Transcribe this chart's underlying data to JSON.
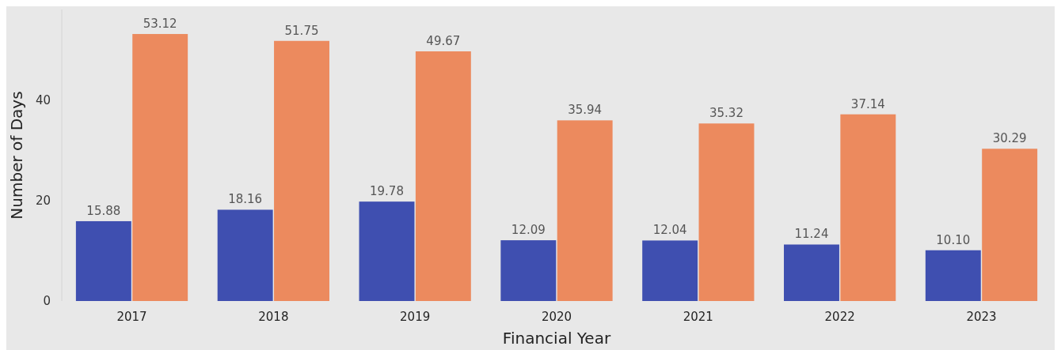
{
  "chart_data": {
    "type": "bar",
    "xlabel": "Financial Year",
    "ylabel": "Number of Days",
    "categories": [
      "2017",
      "2018",
      "2019",
      "2020",
      "2021",
      "2022",
      "2023"
    ],
    "series": [
      {
        "color": "#3f4fb0",
        "values": [
          15.88,
          18.16,
          19.78,
          12.09,
          12.04,
          11.24,
          10.1
        ],
        "value_labels": [
          "15.88",
          "18.16",
          "19.78",
          "12.09",
          "12.04",
          "11.24",
          "10.10"
        ]
      },
      {
        "color": "#ec8a5e",
        "values": [
          53.12,
          51.75,
          49.67,
          35.94,
          35.32,
          37.14,
          30.29
        ],
        "value_labels": [
          "53.12",
          "51.75",
          "49.67",
          "35.94",
          "35.32",
          "37.14",
          "30.29"
        ]
      }
    ],
    "ylim": [
      0,
      58
    ],
    "yticks": [
      0,
      20,
      40
    ],
    "grid": false
  }
}
